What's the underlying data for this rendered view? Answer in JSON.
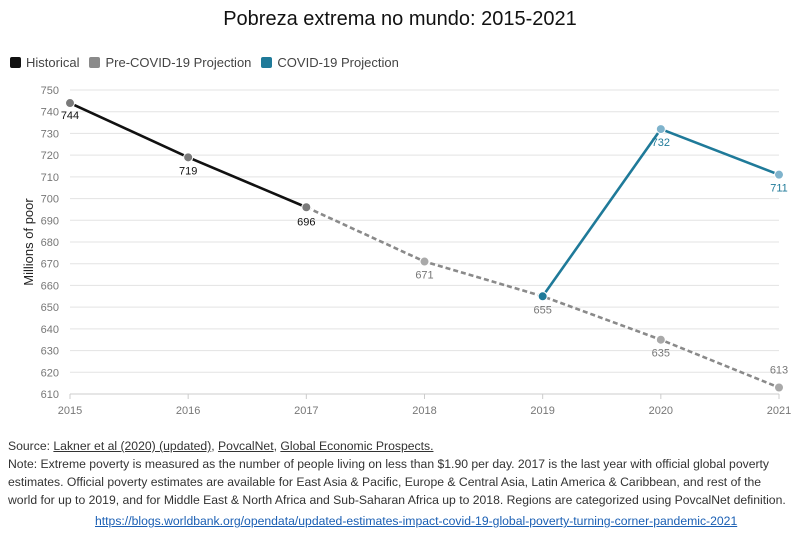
{
  "chart_data": {
    "type": "line",
    "title": "Pobreza extrema no mundo: 2015-2021",
    "ylabel": "Millions of poor",
    "xlabel": "",
    "ylim": [
      610,
      750
    ],
    "yticks": [
      610,
      620,
      630,
      640,
      650,
      660,
      670,
      680,
      690,
      700,
      710,
      720,
      730,
      740,
      750
    ],
    "xticks": [
      2015,
      2016,
      2017,
      2018,
      2019,
      2020,
      2021
    ],
    "grid": true,
    "legend_position": "top-left",
    "series": [
      {
        "name": "Historical",
        "color": "#111111",
        "style": "solid",
        "x": [
          2015,
          2016,
          2017
        ],
        "values": [
          744,
          719,
          696
        ]
      },
      {
        "name": "Pre-COVID-19 Projection",
        "color": "#8a8a8a",
        "style": "dashed",
        "x": [
          2017,
          2018,
          2019,
          2020,
          2021
        ],
        "values": [
          696,
          671,
          655,
          635,
          613
        ]
      },
      {
        "name": "COVID-19 Projection",
        "color": "#1f7a99",
        "style": "solid",
        "x": [
          2019,
          2020,
          2021
        ],
        "values": [
          655,
          732,
          711
        ]
      }
    ],
    "point_labels": [
      {
        "x": 2015,
        "y": 744,
        "text": "744",
        "color": "#111111"
      },
      {
        "x": 2016,
        "y": 719,
        "text": "719",
        "color": "#111111"
      },
      {
        "x": 2017,
        "y": 696,
        "text": "696",
        "color": "#111111"
      },
      {
        "x": 2018,
        "y": 671,
        "text": "671",
        "color": "#777777"
      },
      {
        "x": 2019,
        "y": 655,
        "text": "655",
        "color": "#777777"
      },
      {
        "x": 2020,
        "y": 635,
        "text": "635",
        "color": "#777777"
      },
      {
        "x": 2021,
        "y": 613,
        "text": "613",
        "color": "#777777"
      },
      {
        "x": 2020,
        "y": 732,
        "text": "732",
        "color": "#1f7a99"
      },
      {
        "x": 2021,
        "y": 711,
        "text": "711",
        "color": "#1f7a99"
      }
    ]
  },
  "legend": [
    {
      "label": "Historical",
      "color": "#111111"
    },
    {
      "label": "Pre-COVID-19 Projection",
      "color": "#8a8a8a"
    },
    {
      "label": "COVID-19 Projection",
      "color": "#1f7a99"
    }
  ],
  "source": {
    "prefix": "Source: ",
    "link1": "Lakner et al (2020) (updated)",
    "sep1": ", ",
    "link2": "PovcalNet",
    "sep2": ", ",
    "link3": "Global Economic Prospects.",
    "note": "Note: Extreme poverty is measured as the number of people living on less than $1.90 per day. 2017 is the last year with official global poverty estimates. Official poverty estimates are available for East Asia & Pacific, Europe & Central Asia, Latin America & Caribbean, and rest of the world for up to 2019, and for Middle East & North Africa and Sub-Saharan Africa up to 2018. Regions are categorized using PovcalNet definition.",
    "url": "https://blogs.worldbank.org/opendata/updated-estimates-impact-covid-19-global-poverty-turning-corner-pandemic-2021"
  }
}
